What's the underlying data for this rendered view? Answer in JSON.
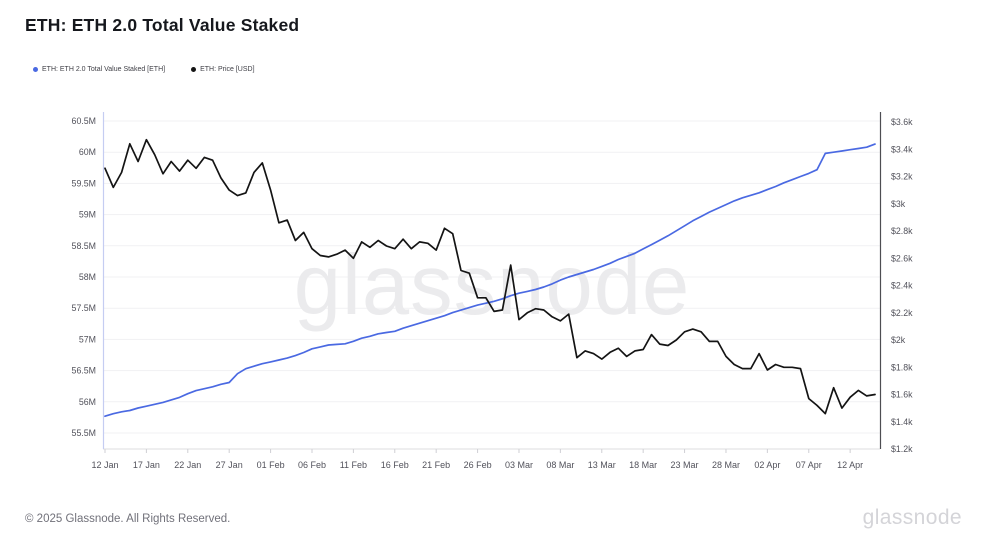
{
  "page": {
    "title": "ETH: ETH 2.0 Total Value Staked"
  },
  "legend": {
    "items": [
      {
        "label": "ETH: ETH 2.0 Total Value Staked [ETH]",
        "color": "#4a69e2",
        "marker": "dot"
      },
      {
        "label": "ETH: Price [USD]",
        "color": "#141414",
        "marker": "dot"
      }
    ]
  },
  "watermark": "glassnode",
  "footer": {
    "copyright": "© 2025 Glassnode. All Rights Reserved.",
    "brand": "glassnode"
  },
  "chart_data": {
    "type": "line",
    "title": "ETH: ETH 2.0 Total Value Staked",
    "grid": "horizontal",
    "legend_position": "top-left",
    "x_axis": {
      "tick_labels": [
        "12 Jan",
        "17 Jan",
        "22 Jan",
        "27 Jan",
        "01 Feb",
        "06 Feb",
        "11 Feb",
        "16 Feb",
        "21 Feb",
        "26 Feb",
        "03 Mar",
        "08 Mar",
        "13 Mar",
        "18 Mar",
        "23 Mar",
        "28 Mar",
        "02 Apr",
        "07 Apr",
        "12 Apr"
      ],
      "tick_interval_days": 5
    },
    "left_axis": {
      "title": "ETH 2.0 Total Value Staked [ETH]",
      "tick_labels": [
        "60.5M",
        "60M",
        "59.5M",
        "59M",
        "58.5M",
        "58M",
        "57.5M",
        "57M",
        "56.5M",
        "56M",
        "55.5M"
      ],
      "range": [
        55.5,
        60.5
      ],
      "unit": "M ETH"
    },
    "right_axis": {
      "title": "ETH Price [USD]",
      "tick_labels": [
        "$3.6k",
        "$3.4k",
        "$3.2k",
        "$3k",
        "$2.8k",
        "$2.6k",
        "$2.4k",
        "$2.2k",
        "$2k",
        "$1.8k",
        "$1.6k",
        "$1.4k",
        "$1.2k"
      ],
      "range": [
        1.2,
        3.6
      ],
      "unit": "k USD"
    },
    "dates": [
      "12 Jan",
      "13 Jan",
      "14 Jan",
      "15 Jan",
      "16 Jan",
      "17 Jan",
      "18 Jan",
      "19 Jan",
      "20 Jan",
      "21 Jan",
      "22 Jan",
      "23 Jan",
      "24 Jan",
      "25 Jan",
      "26 Jan",
      "27 Jan",
      "28 Jan",
      "29 Jan",
      "30 Jan",
      "31 Jan",
      "01 Feb",
      "02 Feb",
      "03 Feb",
      "04 Feb",
      "05 Feb",
      "06 Feb",
      "07 Feb",
      "08 Feb",
      "09 Feb",
      "10 Feb",
      "11 Feb",
      "12 Feb",
      "13 Feb",
      "14 Feb",
      "15 Feb",
      "16 Feb",
      "17 Feb",
      "18 Feb",
      "19 Feb",
      "20 Feb",
      "21 Feb",
      "22 Feb",
      "23 Feb",
      "24 Feb",
      "25 Feb",
      "26 Feb",
      "27 Feb",
      "28 Feb",
      "01 Mar",
      "02 Mar",
      "03 Mar",
      "04 Mar",
      "05 Mar",
      "06 Mar",
      "07 Mar",
      "08 Mar",
      "09 Mar",
      "10 Mar",
      "11 Mar",
      "12 Mar",
      "13 Mar",
      "14 Mar",
      "15 Mar",
      "16 Mar",
      "17 Mar",
      "18 Mar",
      "19 Mar",
      "20 Mar",
      "21 Mar",
      "22 Mar",
      "23 Mar",
      "24 Mar",
      "25 Mar",
      "26 Mar",
      "27 Mar",
      "28 Mar",
      "29 Mar",
      "30 Mar",
      "31 Mar",
      "01 Apr",
      "02 Apr",
      "03 Apr",
      "04 Apr",
      "05 Apr",
      "06 Apr",
      "07 Apr",
      "08 Apr",
      "09 Apr",
      "10 Apr",
      "11 Apr",
      "12 Apr",
      "13 Apr",
      "14 Apr",
      "15 Apr"
    ],
    "series": [
      {
        "name": "ETH: ETH 2.0 Total Value Staked [ETH]",
        "axis": "left",
        "unit": "M ETH",
        "color": "#4a69e2",
        "values": [
          55.77,
          55.81,
          55.84,
          55.86,
          55.9,
          55.93,
          55.96,
          55.99,
          56.03,
          56.07,
          56.13,
          56.18,
          56.21,
          56.24,
          56.28,
          56.31,
          56.45,
          56.53,
          56.57,
          56.61,
          56.64,
          56.67,
          56.7,
          56.74,
          56.79,
          56.85,
          56.88,
          56.91,
          56.92,
          56.93,
          56.97,
          57.02,
          57.05,
          57.09,
          57.11,
          57.13,
          57.18,
          57.22,
          57.26,
          57.3,
          57.34,
          57.38,
          57.43,
          57.47,
          57.51,
          57.55,
          57.58,
          57.61,
          57.65,
          57.7,
          57.74,
          57.77,
          57.8,
          57.84,
          57.89,
          57.95,
          58.0,
          58.04,
          58.08,
          58.12,
          58.17,
          58.22,
          58.28,
          58.33,
          58.38,
          58.45,
          58.52,
          58.59,
          58.66,
          58.74,
          58.82,
          58.9,
          58.97,
          59.04,
          59.1,
          59.16,
          59.22,
          59.27,
          59.31,
          59.35,
          59.4,
          59.45,
          59.51,
          59.56,
          59.61,
          59.66,
          59.72,
          59.98,
          60.0,
          60.02,
          60.04,
          60.06,
          60.08,
          60.13
        ]
      },
      {
        "name": "ETH: Price [USD]",
        "axis": "right",
        "unit": "k USD",
        "color": "#141414",
        "values": [
          3.26,
          3.12,
          3.23,
          3.44,
          3.31,
          3.47,
          3.36,
          3.22,
          3.31,
          3.24,
          3.32,
          3.26,
          3.34,
          3.32,
          3.19,
          3.1,
          3.06,
          3.08,
          3.23,
          3.3,
          3.1,
          2.86,
          2.88,
          2.73,
          2.79,
          2.67,
          2.62,
          2.61,
          2.63,
          2.66,
          2.6,
          2.72,
          2.68,
          2.73,
          2.69,
          2.67,
          2.74,
          2.67,
          2.72,
          2.71,
          2.66,
          2.82,
          2.78,
          2.51,
          2.49,
          2.31,
          2.31,
          2.21,
          2.22,
          2.55,
          2.15,
          2.2,
          2.23,
          2.22,
          2.17,
          2.14,
          2.19,
          1.87,
          1.92,
          1.9,
          1.86,
          1.91,
          1.94,
          1.88,
          1.92,
          1.93,
          2.04,
          1.97,
          1.96,
          2.0,
          2.06,
          2.08,
          2.06,
          1.99,
          1.99,
          1.88,
          1.82,
          1.79,
          1.79,
          1.9,
          1.78,
          1.82,
          1.8,
          1.8,
          1.79,
          1.57,
          1.52,
          1.46,
          1.65,
          1.5,
          1.58,
          1.63,
          1.59,
          1.6
        ]
      }
    ]
  }
}
